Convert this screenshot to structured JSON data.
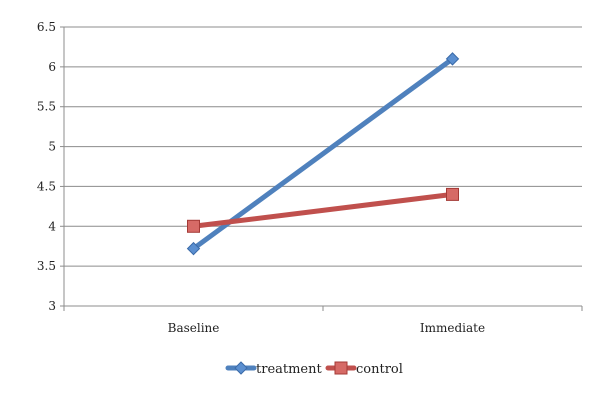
{
  "chart_data": {
    "type": "line",
    "title": "",
    "xlabel": "",
    "ylabel": "",
    "categories": [
      "Baseline",
      "Immediate"
    ],
    "ylim": [
      3,
      6.5
    ],
    "yticks": [
      "3",
      "3.5",
      "4",
      "4.5",
      "5",
      "5.5",
      "6",
      "6.5"
    ],
    "grid": true,
    "legend_position": "bottom",
    "series": [
      {
        "name": "treatment",
        "values": [
          3.72,
          6.1
        ],
        "color": "#4f81bd",
        "marker": "diamond"
      },
      {
        "name": "control",
        "values": [
          4.0,
          4.4
        ],
        "color": "#c0504d",
        "marker": "square"
      }
    ]
  }
}
